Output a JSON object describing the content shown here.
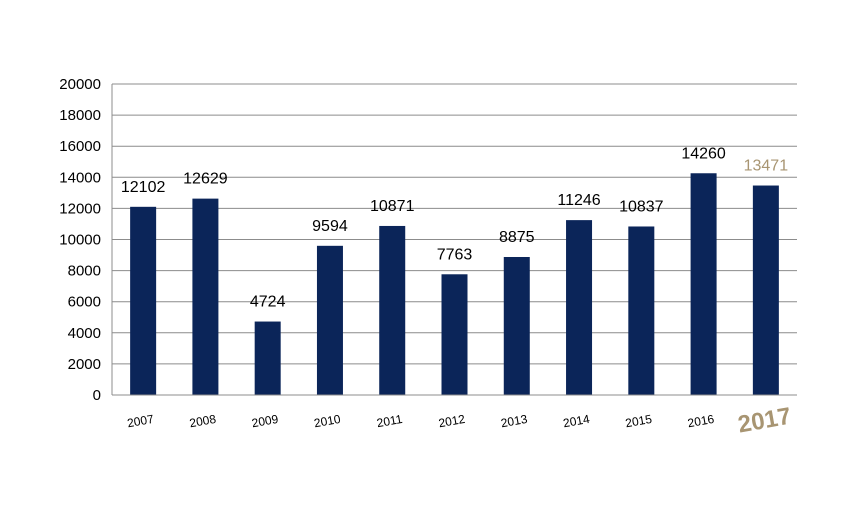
{
  "chart_data": {
    "type": "bar",
    "categories": [
      "2007",
      "2008",
      "2009",
      "2010",
      "2011",
      "2012",
      "2013",
      "2014",
      "2015",
      "2016",
      "2017"
    ],
    "values": [
      12102,
      12629,
      4724,
      9594,
      10871,
      7763,
      8875,
      11246,
      10837,
      14260,
      13471
    ],
    "data_labels": [
      "12102",
      "12629",
      "4724",
      "9594",
      "10871",
      "7763",
      "8875",
      "11246",
      "10837",
      "14260",
      "13471"
    ],
    "y_ticks": [
      "0",
      "2000",
      "4000",
      "6000",
      "8000",
      "10000",
      "12000",
      "14000",
      "16000",
      "18000",
      "20000"
    ],
    "ylim": [
      0,
      20000
    ],
    "highlight_index": 10,
    "grid": true,
    "legend": "none",
    "colors": {
      "bar": "#0b2559",
      "highlight_text": "#a89572",
      "grid": "#8c8c8c",
      "axis": "#8c8c8c"
    }
  }
}
